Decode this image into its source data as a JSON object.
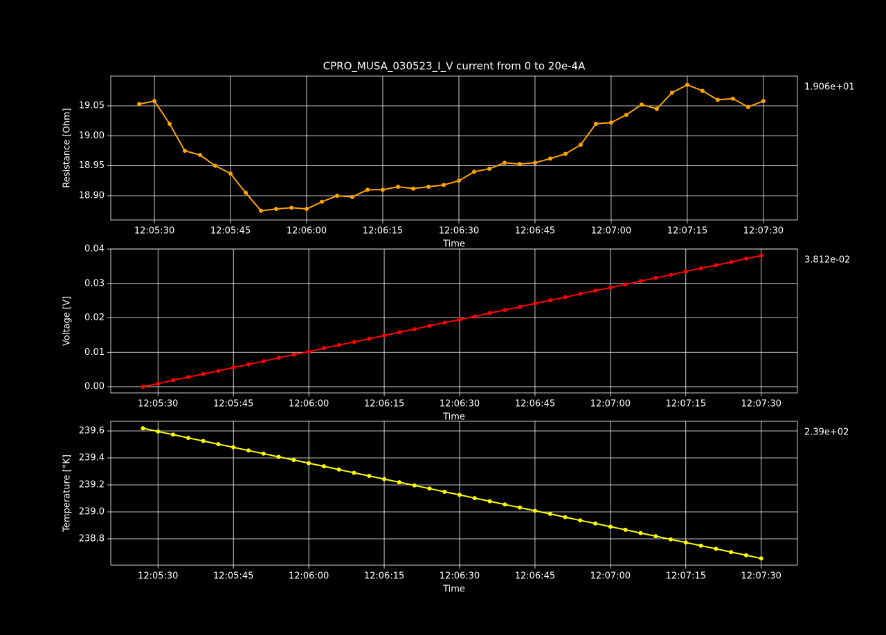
{
  "chart_data": [
    {
      "type": "line",
      "title": "CPRO_MUSA_030523_I_V current from 0 to 20e-4A",
      "xlabel": "Time",
      "ylabel": "Resistance [Ohm]",
      "annotation": "1.906e+01",
      "color": "#ffa500",
      "grid": true,
      "x": [
        "12:05:27",
        "12:05:30",
        "12:05:33",
        "12:05:36",
        "12:05:39",
        "12:05:42",
        "12:05:45",
        "12:05:48",
        "12:05:51",
        "12:05:54",
        "12:05:57",
        "12:06:00",
        "12:06:03",
        "12:06:06",
        "12:06:09",
        "12:06:12",
        "12:06:15",
        "12:06:18",
        "12:06:21",
        "12:06:24",
        "12:06:27",
        "12:06:30",
        "12:06:33",
        "12:06:36",
        "12:06:39",
        "12:06:42",
        "12:06:45",
        "12:06:48",
        "12:06:51",
        "12:06:54",
        "12:06:57",
        "12:07:00",
        "12:07:03",
        "12:07:06",
        "12:07:09",
        "12:07:12",
        "12:07:15",
        "12:07:18",
        "12:07:21",
        "12:07:24",
        "12:07:27",
        "12:07:30"
      ],
      "values": [
        19.053,
        19.058,
        19.02,
        18.975,
        18.968,
        18.95,
        18.937,
        18.905,
        18.875,
        18.878,
        18.88,
        18.878,
        18.89,
        18.9,
        18.898,
        18.91,
        18.91,
        18.915,
        18.912,
        18.915,
        18.918,
        18.925,
        18.94,
        18.945,
        18.955,
        18.953,
        18.955,
        18.962,
        18.97,
        18.985,
        19.02,
        19.022,
        19.035,
        19.052,
        19.045,
        19.072,
        19.085,
        19.075,
        19.06,
        19.062,
        19.048,
        19.058
      ],
      "xlim": [
        "12:05:21.4",
        "12:07:36.7"
      ],
      "xticks": [
        "12:05:30",
        "12:05:45",
        "12:06:00",
        "12:06:15",
        "12:06:30",
        "12:06:45",
        "12:07:00",
        "12:07:15",
        "12:07:30"
      ],
      "ylim": [
        18.8596,
        19.0996
      ],
      "yticks": [
        {
          "value": 18.9,
          "label": "18.90"
        },
        18.95,
        {
          "value": 19.0,
          "label": "19.00"
        },
        19.05
      ]
    },
    {
      "type": "line",
      "xlabel": "Time",
      "ylabel": "Voltage [V]",
      "annotation": "3.812e-02",
      "color": "#ff0000",
      "grid": true,
      "x": [
        "12:05:27",
        "12:05:30",
        "12:05:33",
        "12:05:36",
        "12:05:39",
        "12:05:42",
        "12:05:45",
        "12:05:48",
        "12:05:51",
        "12:05:54",
        "12:05:57",
        "12:06:00",
        "12:06:03",
        "12:06:06",
        "12:06:09",
        "12:06:12",
        "12:06:15",
        "12:06:18",
        "12:06:21",
        "12:06:24",
        "12:06:27",
        "12:06:30",
        "12:06:33",
        "12:06:36",
        "12:06:39",
        "12:06:42",
        "12:06:45",
        "12:06:48",
        "12:06:51",
        "12:06:54",
        "12:06:57",
        "12:07:00",
        "12:07:03",
        "12:07:06",
        "12:07:09",
        "12:07:12",
        "12:07:15",
        "12:07:18",
        "12:07:21",
        "12:07:24",
        "12:07:27",
        "12:07:30"
      ],
      "values": [
        0,
        0.0009,
        0.0019,
        0.0028,
        0.0037,
        0.0046,
        0.0056,
        0.0065,
        0.0074,
        0.0084,
        0.0093,
        0.0102,
        0.0112,
        0.0121,
        0.013,
        0.0139,
        0.0149,
        0.0158,
        0.0167,
        0.0177,
        0.0186,
        0.0195,
        0.0204,
        0.0214,
        0.0223,
        0.0232,
        0.0242,
        0.0251,
        0.026,
        0.027,
        0.0279,
        0.0288,
        0.0297,
        0.0307,
        0.0316,
        0.0325,
        0.0335,
        0.0344,
        0.0353,
        0.0362,
        0.0372,
        0.0381
      ],
      "xlim": [
        "12:05:20.6",
        "12:07:37.2"
      ],
      "xticks": [
        "12:05:30",
        "12:05:45",
        "12:06:00",
        "12:06:15",
        "12:06:30",
        "12:06:45",
        "12:07:00",
        "12:07:15",
        "12:07:30"
      ],
      "ylim": [
        -0.0018,
        0.04
      ],
      "yticks": [
        {
          "value": 0,
          "label": "0.00"
        },
        0.01,
        0.02,
        0.03,
        0.04
      ]
    },
    {
      "type": "line",
      "xlabel": "Time",
      "ylabel": "Temperature [°K]",
      "annotation": "2.39e+02",
      "color": "#ffff00",
      "grid": true,
      "x": [
        "12:05:27",
        "12:05:30",
        "12:05:33",
        "12:05:36",
        "12:05:39",
        "12:05:42",
        "12:05:45",
        "12:05:48",
        "12:05:51",
        "12:05:54",
        "12:05:57",
        "12:06:00",
        "12:06:03",
        "12:06:06",
        "12:06:09",
        "12:06:12",
        "12:06:15",
        "12:06:18",
        "12:06:21",
        "12:06:24",
        "12:06:27",
        "12:06:30",
        "12:06:33",
        "12:06:36",
        "12:06:39",
        "12:06:42",
        "12:06:45",
        "12:06:48",
        "12:06:51",
        "12:06:54",
        "12:06:57",
        "12:07:00",
        "12:07:03",
        "12:07:06",
        "12:07:09",
        "12:07:12",
        "12:07:15",
        "12:07:18",
        "12:07:21",
        "12:07:24",
        "12:07:27",
        "12:07:30"
      ],
      "values": [
        239.62,
        239.596,
        239.573,
        239.549,
        239.526,
        239.502,
        239.479,
        239.455,
        239.432,
        239.408,
        239.385,
        239.361,
        239.338,
        239.314,
        239.29,
        239.267,
        239.243,
        239.22,
        239.196,
        239.173,
        239.149,
        239.126,
        239.102,
        239.079,
        239.055,
        239.032,
        239.008,
        238.985,
        238.961,
        238.937,
        238.914,
        238.89,
        238.867,
        238.843,
        238.82,
        238.796,
        238.773,
        238.749,
        238.726,
        238.702,
        238.679,
        238.655
      ],
      "xlim": [
        "12:05:20.6",
        "12:07:37.2"
      ],
      "xticks": [
        "12:05:30",
        "12:05:45",
        "12:06:00",
        "12:06:15",
        "12:06:30",
        "12:06:45",
        "12:07:00",
        "12:07:15",
        "12:07:30"
      ],
      "ylim": [
        238.605,
        239.672
      ],
      "yticks": [
        238.8,
        {
          "value": 239.0,
          "label": "239.0"
        },
        239.2,
        239.4,
        239.6
      ]
    }
  ]
}
